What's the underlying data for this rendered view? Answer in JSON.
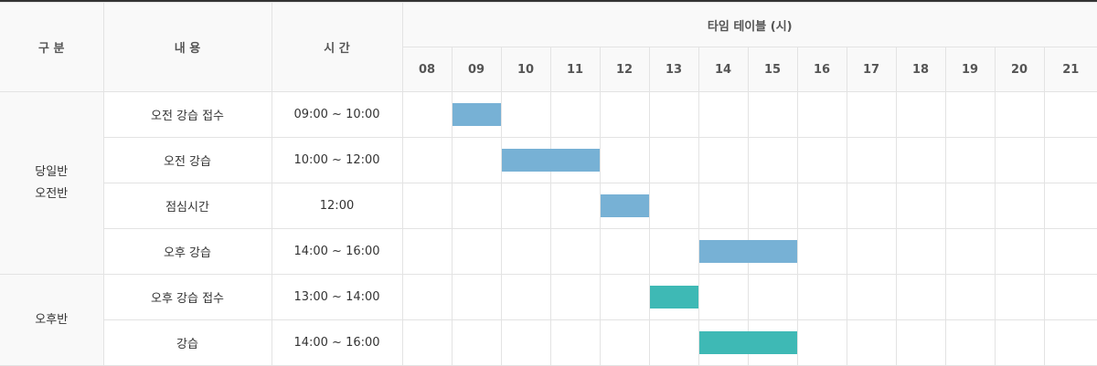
{
  "headers": {
    "category": "구 분",
    "content": "내 용",
    "time": "시 간",
    "timetable": "타임 테이블 (시)"
  },
  "hours": [
    "08",
    "09",
    "10",
    "11",
    "12",
    "13",
    "14",
    "15",
    "16",
    "17",
    "18",
    "19",
    "20",
    "21"
  ],
  "groups": [
    {
      "label_line1": "당일반",
      "label_line2": "오전반"
    },
    {
      "label_line1": "오후반",
      "label_line2": ""
    }
  ],
  "rows": [
    {
      "content": "오전 강습 접수",
      "time": "09:00 ~ 10:00",
      "start": 9,
      "end": 10,
      "color": "#77b1d5"
    },
    {
      "content": "오전 강습",
      "time": "10:00 ~ 12:00",
      "start": 10,
      "end": 12,
      "color": "#77b1d5"
    },
    {
      "content": "점심시간",
      "time": "12:00",
      "start": 12,
      "end": 13,
      "color": "#77b1d5"
    },
    {
      "content": "오후 강습",
      "time": "14:00 ~ 16:00",
      "start": 14,
      "end": 16,
      "color": "#77b1d5"
    },
    {
      "content": "오후 강습 접수",
      "time": "13:00 ~ 14:00",
      "start": 13,
      "end": 14,
      "color": "#3eb9b5"
    },
    {
      "content": "강습",
      "time": "14:00 ~ 16:00",
      "start": 14,
      "end": 16,
      "color": "#3eb9b5"
    }
  ]
}
